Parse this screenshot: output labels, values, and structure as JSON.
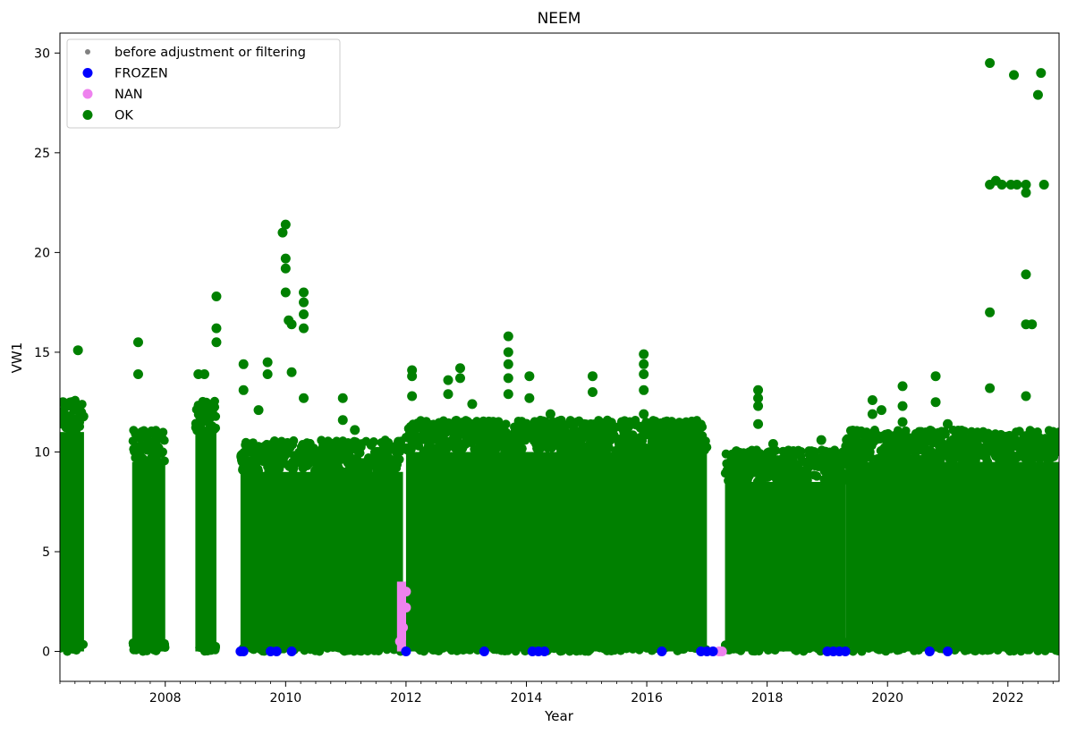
{
  "chart_data": {
    "type": "scatter",
    "title": "NEEM",
    "xlabel": "Year",
    "ylabel": "VW1",
    "xlim": [
      2006.25,
      2022.85
    ],
    "ylim": [
      -1.5,
      31.0
    ],
    "grid": false,
    "legend_position": "upper-left",
    "x_ticks": [
      2008,
      2010,
      2012,
      2014,
      2016,
      2018,
      2020,
      2022
    ],
    "y_ticks": [
      0,
      5,
      10,
      15,
      20,
      25,
      30
    ],
    "series": [
      {
        "name": "before adjustment or filtering",
        "color": "#808080",
        "marker": "small-dot",
        "values": []
      },
      {
        "name": "FROZEN",
        "color": "#0000ff",
        "marker": "dot",
        "points": [
          [
            2009.25,
            0
          ],
          [
            2009.3,
            0
          ],
          [
            2009.75,
            0
          ],
          [
            2009.85,
            0
          ],
          [
            2010.1,
            0
          ],
          [
            2012.0,
            0
          ],
          [
            2013.3,
            0
          ],
          [
            2014.1,
            0
          ],
          [
            2014.2,
            0
          ],
          [
            2014.3,
            0
          ],
          [
            2016.25,
            0
          ],
          [
            2016.9,
            0
          ],
          [
            2017.0,
            0
          ],
          [
            2017.1,
            0
          ],
          [
            2019.0,
            0
          ],
          [
            2019.1,
            0
          ],
          [
            2019.2,
            0
          ],
          [
            2019.3,
            0
          ],
          [
            2020.7,
            0
          ],
          [
            2021.0,
            0
          ]
        ]
      },
      {
        "name": "NAN",
        "color": "#ee82ee",
        "marker": "dot",
        "ranges": [
          [
            2011.85,
            2012.0,
            0,
            3.5
          ]
        ],
        "points": [
          [
            2011.9,
            0.5
          ],
          [
            2011.95,
            1.2
          ],
          [
            2012.0,
            2.2
          ],
          [
            2012.0,
            3.0
          ],
          [
            2017.2,
            0
          ],
          [
            2017.25,
            0
          ]
        ]
      },
      {
        "name": "OK",
        "color": "#008000",
        "marker": "dot",
        "blocks": [
          [
            2006.25,
            2006.65,
            0,
            11
          ],
          [
            2007.45,
            2008.0,
            0,
            9.5
          ],
          [
            2008.5,
            2008.85,
            0,
            11
          ],
          [
            2009.25,
            2011.95,
            0,
            9
          ],
          [
            2012.0,
            2017.0,
            0,
            10
          ],
          [
            2017.3,
            2019.3,
            0,
            8.5
          ],
          [
            2019.3,
            2022.85,
            0,
            9.5
          ]
        ],
        "spikes": [
          [
            2006.3,
            12.5
          ],
          [
            2006.55,
            15.1
          ],
          [
            2006.6,
            12
          ],
          [
            2007.55,
            15.5
          ],
          [
            2007.55,
            13.9
          ],
          [
            2008.55,
            13.9
          ],
          [
            2008.65,
            13.9
          ],
          [
            2008.85,
            17.8
          ],
          [
            2008.85,
            16.2
          ],
          [
            2008.85,
            15.5
          ],
          [
            2009.3,
            14.4
          ],
          [
            2009.3,
            13.1
          ],
          [
            2009.55,
            12.1
          ],
          [
            2009.7,
            14.5
          ],
          [
            2009.7,
            13.9
          ],
          [
            2009.95,
            21
          ],
          [
            2010.0,
            21.4
          ],
          [
            2010.0,
            19.7
          ],
          [
            2010.0,
            19.2
          ],
          [
            2010.0,
            18
          ],
          [
            2010.05,
            16.6
          ],
          [
            2010.1,
            16.4
          ],
          [
            2010.1,
            14
          ],
          [
            2010.3,
            18
          ],
          [
            2010.3,
            17.5
          ],
          [
            2010.3,
            16.9
          ],
          [
            2010.3,
            16.2
          ],
          [
            2010.3,
            12.7
          ],
          [
            2010.95,
            12.7
          ],
          [
            2010.95,
            11.6
          ],
          [
            2011.15,
            11.1
          ],
          [
            2012.1,
            14.1
          ],
          [
            2012.1,
            13.8
          ],
          [
            2012.1,
            12.8
          ],
          [
            2012.7,
            13.6
          ],
          [
            2012.7,
            12.9
          ],
          [
            2012.9,
            14.2
          ],
          [
            2012.9,
            13.7
          ],
          [
            2013.1,
            12.4
          ],
          [
            2013.7,
            15.8
          ],
          [
            2013.7,
            15
          ],
          [
            2013.7,
            14.4
          ],
          [
            2013.7,
            13.7
          ],
          [
            2013.7,
            12.9
          ],
          [
            2014.05,
            13.8
          ],
          [
            2014.05,
            12.7
          ],
          [
            2014.4,
            11.9
          ],
          [
            2014.55,
            11.4
          ],
          [
            2015.1,
            13.8
          ],
          [
            2015.1,
            13
          ],
          [
            2015.95,
            14.9
          ],
          [
            2015.95,
            14.4
          ],
          [
            2015.95,
            13.9
          ],
          [
            2015.95,
            13.1
          ],
          [
            2015.95,
            11.9
          ],
          [
            2016.3,
            11.5
          ],
          [
            2016.7,
            11.2
          ],
          [
            2017.85,
            13.1
          ],
          [
            2017.85,
            12.7
          ],
          [
            2017.85,
            12.3
          ],
          [
            2017.85,
            11.4
          ],
          [
            2018.1,
            10.4
          ],
          [
            2018.9,
            10.6
          ],
          [
            2019.75,
            12.6
          ],
          [
            2019.75,
            11.9
          ],
          [
            2019.9,
            12.1
          ],
          [
            2020.25,
            13.3
          ],
          [
            2020.25,
            12.3
          ],
          [
            2020.25,
            11.5
          ],
          [
            2020.8,
            13.8
          ],
          [
            2020.8,
            12.5
          ],
          [
            2021.0,
            11.4
          ],
          [
            2021.5,
            10.8
          ],
          [
            2021.7,
            29.5
          ],
          [
            2021.7,
            23.4
          ],
          [
            2021.8,
            23.6
          ],
          [
            2021.9,
            23.4
          ],
          [
            2021.7,
            17
          ],
          [
            2021.7,
            13.2
          ],
          [
            2022.1,
            28.9
          ],
          [
            2022.05,
            23.4
          ],
          [
            2022.15,
            23.4
          ],
          [
            2022.3,
            23.4
          ],
          [
            2022.3,
            23
          ],
          [
            2022.3,
            18.9
          ],
          [
            2022.3,
            16.4
          ],
          [
            2022.4,
            16.4
          ],
          [
            2022.3,
            12.8
          ],
          [
            2022.5,
            27.9
          ],
          [
            2022.55,
            29
          ],
          [
            2022.6,
            23.4
          ]
        ]
      }
    ]
  }
}
